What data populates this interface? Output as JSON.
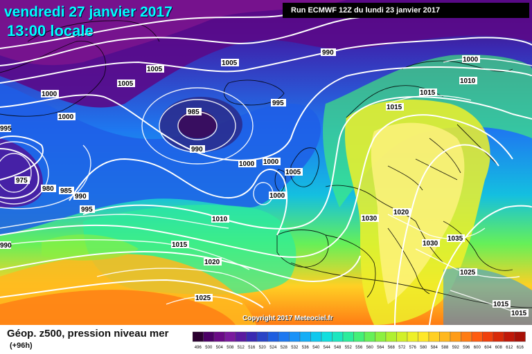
{
  "header": {
    "date_title": "vendredi 27 janvier 2017",
    "time_title": "13:00 locale",
    "run_info": "Run ECMWF 12Z du lundi 23 janvier 2017"
  },
  "footer": {
    "caption": "Géop. z500, pression niveau mer",
    "subcaption": "(+96h)",
    "copyright": "Copyright 2017 Meteociel.fr"
  },
  "isobar_labels": [
    "990",
    "1000",
    "1005",
    "1005",
    "1005",
    "1000",
    "1000",
    "995",
    "985",
    "990",
    "995",
    "975",
    "980",
    "985",
    "990",
    "995",
    "1000",
    "1000",
    "1005",
    "1000",
    "1010",
    "1015",
    "1020",
    "1025",
    "1015",
    "1010",
    "1015",
    "1020",
    "1030",
    "1035",
    "1030",
    "1025",
    "1015",
    "1015",
    "990",
    "995"
  ],
  "scale_labels": [
    "496",
    "500",
    "504",
    "508",
    "512",
    "516",
    "520",
    "524",
    "528",
    "532",
    "536",
    "540",
    "544",
    "548",
    "552",
    "556",
    "560",
    "564",
    "568",
    "572",
    "576",
    "580",
    "584",
    "588",
    "592",
    "596",
    "600",
    "604",
    "608",
    "612",
    "616"
  ],
  "scale_colors": [
    "#2b0030",
    "#4b0066",
    "#6a0a86",
    "#7a1a9e",
    "#5a1aa0",
    "#3a2ab2",
    "#2a44c6",
    "#1f5ee0",
    "#1e78f0",
    "#1a92f8",
    "#14aef6",
    "#10c8ee",
    "#12dede",
    "#1ce6c0",
    "#2cec9c",
    "#44f078",
    "#66f058",
    "#8cf040",
    "#b0f030",
    "#d2f02a",
    "#eef02a",
    "#ffe82a",
    "#ffd024",
    "#ffb81e",
    "#ff9c18",
    "#ff7c14",
    "#ff5c10",
    "#f0400c",
    "#d82a08",
    "#c01808",
    "#a81006"
  ]
}
